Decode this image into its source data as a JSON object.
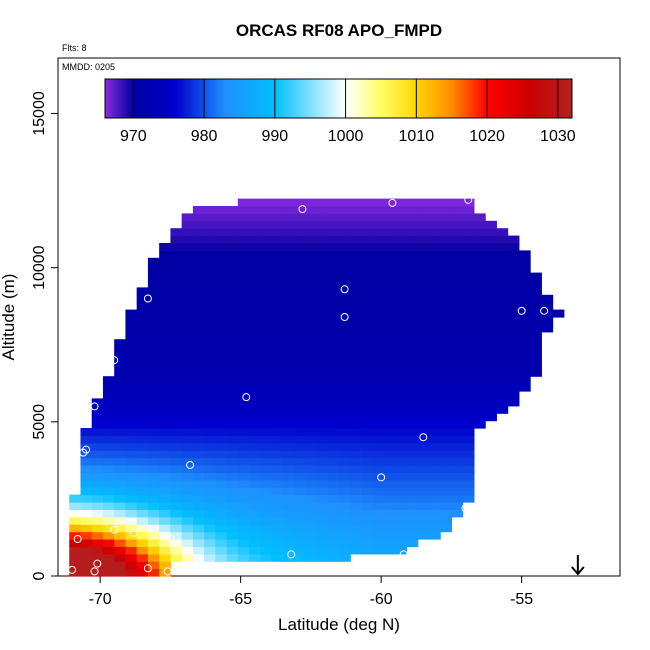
{
  "chart_data": {
    "type": "heatmap",
    "title": "ORCAS RF08 APO_FMPD",
    "xlabel": "Latitude (deg N)",
    "ylabel": "Altitude (m)",
    "flights_note": "Flts: 8",
    "date_note": "MMDD: 0205",
    "xlim": [
      -71.5,
      -51.5
    ],
    "ylim": [
      0,
      16800
    ],
    "x_ticks": [
      -70,
      -65,
      -60,
      -55
    ],
    "x_tick_labels": [
      "-70",
      "-65",
      "-60",
      "-55"
    ],
    "y_ticks": [
      0,
      5000,
      10000,
      15000
    ],
    "y_tick_labels": [
      "0",
      "5000",
      "10000",
      "15000"
    ],
    "colorbar": {
      "min": 966,
      "max": 1032,
      "ticks": [
        970,
        980,
        990,
        1000,
        1010,
        1020,
        1030
      ],
      "tick_labels": [
        "970",
        "980",
        "990",
        "1000",
        "1010",
        "1020",
        "1030"
      ],
      "colors": [
        "#8a2be2",
        "#0000a0",
        "#0000cd",
        "#1e90ff",
        "#00bfff",
        "#ffffff",
        "#ffff66",
        "#ffd700",
        "#ff8c00",
        "#ff0000",
        "#cd0000",
        "#b22222"
      ],
      "color_positions": [
        966,
        970,
        976,
        983,
        990,
        1000,
        1005,
        1010,
        1015,
        1020,
        1026,
        1032
      ]
    },
    "domain_polygon": [
      [
        -71.2,
        0
      ],
      [
        -67.4,
        0
      ],
      [
        -67.4,
        400
      ],
      [
        -62,
        550
      ],
      [
        -61,
        600
      ],
      [
        -60,
        700
      ],
      [
        -59.2,
        800
      ],
      [
        -58.2,
        1200
      ],
      [
        -57.5,
        1700
      ],
      [
        -56.7,
        2500
      ],
      [
        -56.7,
        3500
      ],
      [
        -56.5,
        4800
      ],
      [
        -55.2,
        5700
      ],
      [
        -54.2,
        6900
      ],
      [
        -54.2,
        7800
      ],
      [
        -53.6,
        8600
      ],
      [
        -54.3,
        9400
      ],
      [
        -54.7,
        10500
      ],
      [
        -55.5,
        11200
      ],
      [
        -56.5,
        11700
      ],
      [
        -57.0,
        12300
      ],
      [
        -63,
        12300
      ],
      [
        -66.5,
        12000
      ],
      [
        -67.0,
        11700
      ],
      [
        -67.6,
        10800
      ],
      [
        -68.3,
        10000
      ],
      [
        -68.6,
        9200
      ],
      [
        -69.2,
        8200
      ],
      [
        -69.4,
        7200
      ],
      [
        -69.8,
        6200
      ],
      [
        -70.3,
        5500
      ],
      [
        -70.6,
        4400
      ],
      [
        -70.8,
        3200
      ],
      [
        -71.1,
        1500
      ],
      [
        -71.2,
        900
      ]
    ],
    "surface_high_center": [
      -71.2,
      0
    ],
    "sample_points": [
      [
        -71.0,
        200
      ],
      [
        -70.2,
        150
      ],
      [
        -70.1,
        400
      ],
      [
        -69.5,
        1500
      ],
      [
        -70.8,
        1200
      ],
      [
        -68.8,
        1400
      ],
      [
        -68.3,
        250
      ],
      [
        -67.6,
        150
      ],
      [
        -67.5,
        1200
      ],
      [
        -70.6,
        4000
      ],
      [
        -70.2,
        5500
      ],
      [
        -70.5,
        4100
      ],
      [
        -69.5,
        7000
      ],
      [
        -68.3,
        9000
      ],
      [
        -67.3,
        11700
      ],
      [
        -66.8,
        3600
      ],
      [
        -64.8,
        5800
      ],
      [
        -62.8,
        11900
      ],
      [
        -61.3,
        9300
      ],
      [
        -61.3,
        8400
      ],
      [
        -60,
        3200
      ],
      [
        -58.5,
        4500
      ],
      [
        -59.6,
        12100
      ],
      [
        -57.0,
        2200
      ],
      [
        -59.2,
        700
      ],
      [
        -63.2,
        700
      ],
      [
        -55.0,
        8600
      ],
      [
        -54.2,
        8600
      ],
      [
        -56.9,
        12200
      ]
    ],
    "arrow_marker": {
      "x": -53.0
    }
  }
}
